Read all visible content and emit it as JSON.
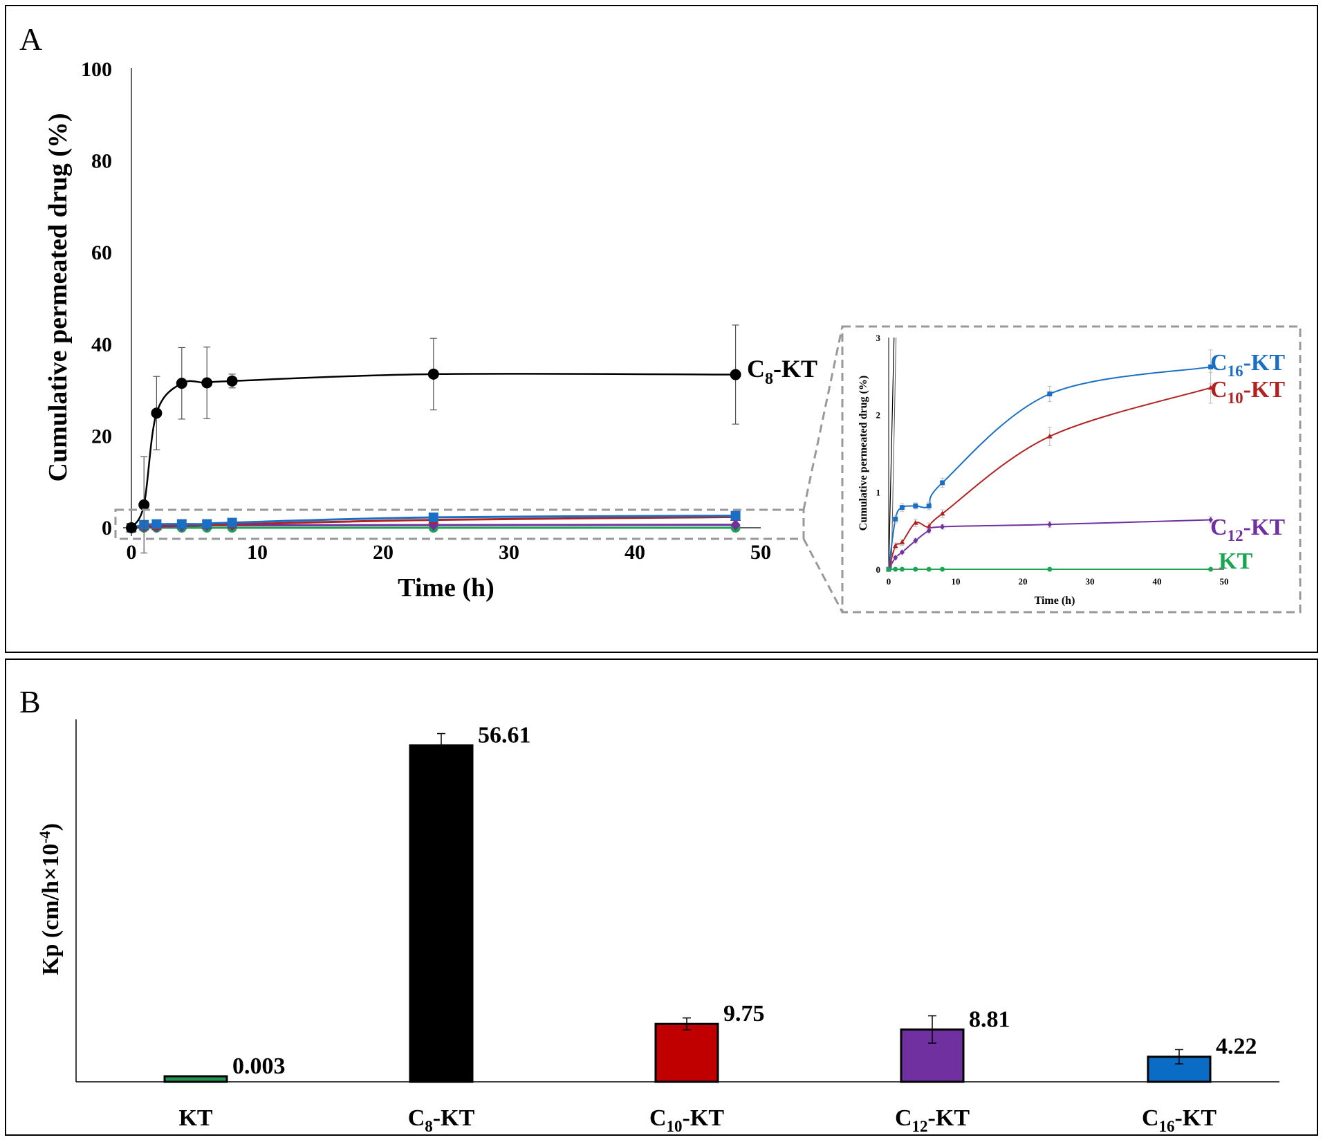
{
  "panels": {
    "a_label": "A",
    "b_label": "B"
  },
  "chart_data": [
    {
      "type": "line",
      "title": "",
      "xlabel": "Time (h)",
      "ylabel": "Cumulative permeated drug (%)",
      "xlim": [
        0,
        50
      ],
      "ylim": [
        0,
        100
      ],
      "xticks": [
        "0",
        "10",
        "20",
        "30",
        "40",
        "50"
      ],
      "yticks": [
        "0",
        "20",
        "40",
        "60",
        "80",
        "100"
      ],
      "x": [
        0,
        1,
        2,
        4,
        6,
        8,
        24,
        48
      ],
      "series": [
        {
          "name": "C8-KT",
          "label_main": "C",
          "label_sub": "8",
          "label_suffix": "-KT",
          "color": "#000000",
          "marker": "circle",
          "values": [
            0,
            5.0,
            25.0,
            31.5,
            31.6,
            32.0,
            33.5,
            33.4
          ],
          "errors": [
            0,
            10.5,
            8.0,
            7.8,
            7.8,
            1.5,
            7.8,
            10.8
          ]
        },
        {
          "name": "C16-KT",
          "label_main": "C",
          "label_sub": "16",
          "label_suffix": "-KT",
          "color": "#1a6fc4",
          "marker": "square",
          "values": [
            0,
            0.65,
            0.8,
            0.82,
            0.82,
            1.12,
            2.27,
            2.62
          ],
          "errors": [
            0,
            0.05,
            0.05,
            0.04,
            0.05,
            0.06,
            0.1,
            0.22
          ]
        },
        {
          "name": "C10-KT",
          "label_main": "C",
          "label_sub": "10",
          "label_suffix": "-KT",
          "color": "#b22222",
          "marker": "triangle",
          "values": [
            0,
            0.3,
            0.35,
            0.6,
            0.55,
            0.72,
            1.72,
            2.35
          ],
          "errors": [
            0,
            0.04,
            0.04,
            0.05,
            0.05,
            0.05,
            0.12,
            0.2
          ]
        },
        {
          "name": "C12-KT",
          "label_main": "C",
          "label_sub": "12",
          "label_suffix": "-KT",
          "color": "#7030a0",
          "marker": "diamond",
          "values": [
            0,
            0.15,
            0.22,
            0.37,
            0.5,
            0.55,
            0.58,
            0.64
          ],
          "errors": [
            0,
            0.02,
            0.02,
            0.03,
            0.03,
            0.03,
            0.04,
            0.04
          ]
        },
        {
          "name": "KT",
          "label_main": "KT",
          "label_sub": "",
          "label_suffix": "",
          "color": "#1aa550",
          "marker": "circle",
          "values": [
            0,
            0,
            0,
            0,
            0,
            0,
            0,
            0
          ],
          "errors": [
            0,
            0.01,
            0.01,
            0.01,
            0.01,
            0.01,
            0.01,
            0.01
          ]
        }
      ],
      "inset": {
        "xlabel": "Time (h)",
        "ylabel": "Cumulative permeated drug (%)",
        "xlim": [
          0,
          50
        ],
        "ylim": [
          0,
          3
        ],
        "xticks": [
          "0",
          "10",
          "20",
          "30",
          "40",
          "50"
        ],
        "yticks": [
          "0",
          "1",
          "2",
          "3"
        ]
      }
    },
    {
      "type": "bar",
      "title": "",
      "xlabel": "",
      "ylabel": "Kp (cm/h×10",
      "ylabel_sup": "-4",
      "ylabel_close": ")",
      "ylim": [
        0,
        61
      ],
      "categories": [
        {
          "main": "KT",
          "sub": "",
          "suffix": ""
        },
        {
          "main": "C",
          "sub": "8",
          "suffix": "-KT"
        },
        {
          "main": "C",
          "sub": "10",
          "suffix": "-KT"
        },
        {
          "main": "C",
          "sub": "12",
          "suffix": "-KT"
        },
        {
          "main": "C",
          "sub": "16",
          "suffix": "-KT"
        }
      ],
      "values": [
        0.003,
        56.61,
        9.75,
        8.81,
        4.22
      ],
      "value_labels": [
        "0.003",
        "56.61",
        "9.75",
        "8.81",
        "4.22"
      ],
      "errors": [
        0,
        2.0,
        1.0,
        2.3,
        1.2
      ],
      "colors": [
        "#1e9650",
        "#000000",
        "#c00000",
        "#7030a0",
        "#0a6cc4"
      ]
    }
  ]
}
